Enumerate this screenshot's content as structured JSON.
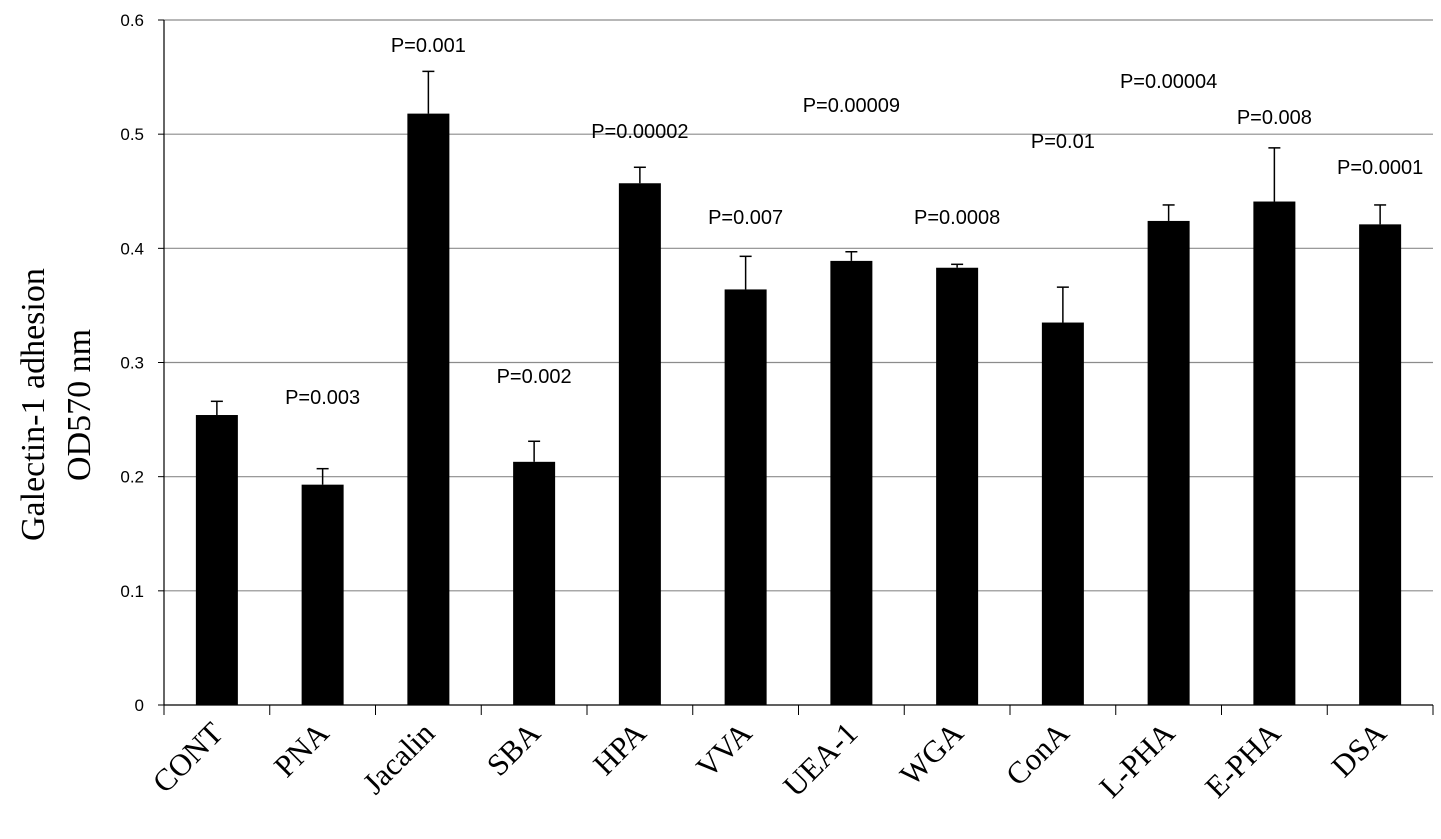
{
  "chart_data": {
    "type": "bar",
    "title": "",
    "xlabel": "",
    "ylabel_lines": [
      "Galectin-1 adhesion",
      "OD570 nm"
    ],
    "ylim": [
      0,
      0.6
    ],
    "yticks": [
      "0",
      "0.1",
      "0.2",
      "0.3",
      "0.4",
      "0.5",
      "0.6"
    ],
    "grid": true,
    "bar_color": "#000000",
    "categories": [
      "CONT",
      "PNA",
      "Jacalin",
      "SBA",
      "HPA",
      "VVA",
      "UEA-1",
      "WGA",
      "ConA",
      "L-PHA",
      "E-PHA",
      "DSA"
    ],
    "values": [
      0.254,
      0.193,
      0.518,
      0.213,
      0.457,
      0.364,
      0.389,
      0.383,
      0.335,
      0.424,
      0.441,
      0.421
    ],
    "errors": [
      0.012,
      0.014,
      0.037,
      0.018,
      0.014,
      0.029,
      0.008,
      0.003,
      0.031,
      0.014,
      0.047,
      0.017
    ],
    "annotations": [
      "",
      "P=0.003",
      "P=0.001",
      "P=0.002",
      "P=0.00002",
      "P=0.007",
      "P=0.00009",
      "P=0.0008",
      "P=0.01",
      "P=0.00004",
      "P=0.008",
      "P=0.0001"
    ]
  }
}
